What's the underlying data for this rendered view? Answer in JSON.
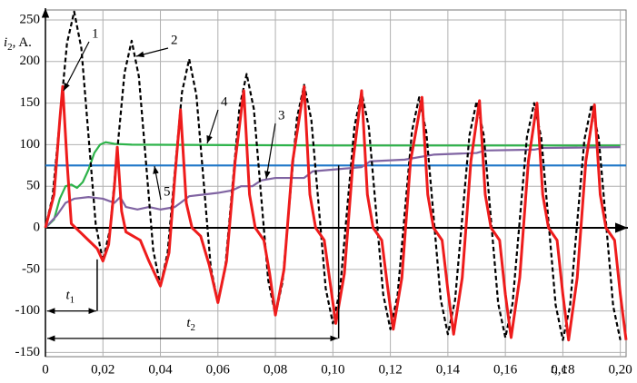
{
  "chart_data": {
    "type": "line",
    "y_label": {
      "text": "i",
      "sub": "2",
      "unit": ", A."
    },
    "x_label": {
      "text": "t",
      "unit": ", c"
    },
    "xlim": [
      0,
      0.202
    ],
    "ylim": [
      -155,
      262
    ],
    "xticks": [
      0,
      {
        "value": 0.02,
        "label": "0,02"
      },
      {
        "value": 0.04,
        "label": "0,04"
      },
      {
        "value": 0.06,
        "label": "0,06"
      },
      {
        "value": 0.08,
        "label": "0,08"
      },
      {
        "value": 0.1,
        "label": "0,10"
      },
      {
        "value": 0.12,
        "label": "0,12"
      },
      {
        "value": 0.14,
        "label": "0,14"
      },
      {
        "value": 0.16,
        "label": "0,16"
      },
      {
        "value": 0.18,
        "label": "0,18"
      },
      {
        "value": 0.2,
        "label": "0,20"
      }
    ],
    "yticks": [
      -150,
      -100,
      -50,
      0,
      50,
      100,
      150,
      200,
      250
    ],
    "grid": true,
    "series": [
      {
        "name": "1",
        "color": "#ee1c1c",
        "dash": false,
        "x": [
          0,
          0.003,
          0.005,
          0.006,
          0.0075,
          0.009,
          0.012,
          0.015,
          0.018,
          0.02,
          0.022,
          0.024,
          0.025,
          0.0265,
          0.028,
          0.033,
          0.036,
          0.04,
          0.043,
          0.045,
          0.047,
          0.049,
          0.051,
          0.054,
          0.057,
          0.06,
          0.063,
          0.066,
          0.069,
          0.071,
          0.073,
          0.076,
          0.078,
          0.08,
          0.083,
          0.086,
          0.09,
          0.092,
          0.094,
          0.097,
          0.099,
          0.101,
          0.104,
          0.107,
          0.11,
          0.112,
          0.114,
          0.117,
          0.119,
          0.121,
          0.124,
          0.127,
          0.131,
          0.133,
          0.135,
          0.138,
          0.14,
          0.142,
          0.145,
          0.148,
          0.151,
          0.153,
          0.155,
          0.158,
          0.16,
          0.162,
          0.165,
          0.168,
          0.171,
          0.173,
          0.175,
          0.178,
          0.18,
          0.182,
          0.185,
          0.188,
          0.191,
          0.193,
          0.195,
          0.198,
          0.2,
          0.202
        ],
        "values": [
          0,
          40,
          130,
          170,
          80,
          5,
          -5,
          -15,
          -25,
          -40,
          -20,
          50,
          97,
          20,
          -5,
          -15,
          -40,
          -70,
          -30,
          60,
          142,
          30,
          0,
          -10,
          -45,
          -90,
          -40,
          80,
          165,
          40,
          0,
          -15,
          -55,
          -105,
          -50,
          80,
          170,
          40,
          0,
          -15,
          -65,
          -115,
          -55,
          80,
          165,
          40,
          0,
          -15,
          -70,
          -122,
          -60,
          80,
          157,
          40,
          0,
          -15,
          -75,
          -128,
          -60,
          80,
          153,
          40,
          0,
          -15,
          -80,
          -132,
          -60,
          80,
          150,
          40,
          0,
          -15,
          -80,
          -135,
          -60,
          80,
          148,
          40,
          0,
          -15,
          -80,
          -135
        ]
      },
      {
        "name": "2",
        "color": "#000000",
        "dash": true,
        "x": [
          0,
          0.0025,
          0.005,
          0.0075,
          0.01,
          0.0125,
          0.015,
          0.0175,
          0.02,
          0.0225,
          0.025,
          0.0275,
          0.03,
          0.0325,
          0.035,
          0.0375,
          0.04,
          0.0425,
          0.045,
          0.0475,
          0.05,
          0.0525,
          0.055,
          0.0575,
          0.06,
          0.0625,
          0.065,
          0.0675,
          0.07,
          0.0725,
          0.075,
          0.0775,
          0.08,
          0.0825,
          0.085,
          0.0875,
          0.09,
          0.0925,
          0.095,
          0.0975,
          0.1,
          0.1025,
          0.105,
          0.1075,
          0.11,
          0.1125,
          0.115,
          0.1175,
          0.12,
          0.1225,
          0.125,
          0.1275,
          0.13,
          0.1325,
          0.135,
          0.1375,
          0.14,
          0.1425,
          0.145,
          0.1475,
          0.15,
          0.1525,
          0.155,
          0.1575,
          0.16,
          0.1625,
          0.165,
          0.1675,
          0.17,
          0.1725,
          0.175,
          0.1775,
          0.18,
          0.1825,
          0.185,
          0.1875,
          0.19,
          0.1925,
          0.195,
          0.1975,
          0.2
        ],
        "values": [
          0,
          38,
          130,
          222,
          260,
          216,
          110,
          4,
          -40,
          -1,
          93,
          186,
          225,
          182,
          78,
          -27,
          -70,
          -30,
          67,
          163,
          203,
          160,
          57,
          -47,
          -90,
          -50,
          48,
          145,
          185,
          143,
          40,
          -63,
          -105,
          -65,
          34,
          132,
          172,
          130,
          29,
          -73,
          -115,
          -74,
          24,
          122,
          163,
          121,
          21,
          -80,
          -122,
          -81,
          18,
          116,
          157,
          115,
          15,
          -86,
          -128,
          -87,
          12,
          111,
          152,
          111,
          10,
          -91,
          -132,
          -91,
          9,
          109,
          150,
          108,
          8,
          -93,
          -135,
          -94,
          7,
          106,
          148,
          107,
          7,
          -94,
          -135
        ]
      },
      {
        "name": "3",
        "color": "#8064a2",
        "dash": false,
        "x": [
          0,
          0.004,
          0.007,
          0.01,
          0.015,
          0.02,
          0.024,
          0.026,
          0.028,
          0.032,
          0.036,
          0.04,
          0.045,
          0.047,
          0.05,
          0.055,
          0.06,
          0.065,
          0.068,
          0.072,
          0.075,
          0.08,
          0.09,
          0.093,
          0.1,
          0.11,
          0.113,
          0.125,
          0.13,
          0.135,
          0.15,
          0.153,
          0.17,
          0.173,
          0.2
        ],
        "values": [
          0,
          15,
          30,
          35,
          37,
          35,
          30,
          37,
          25,
          22,
          25,
          22,
          25,
          30,
          38,
          40,
          42,
          45,
          50,
          50,
          57,
          60,
          60,
          68,
          70,
          73,
          80,
          82,
          85,
          88,
          90,
          93,
          94,
          96,
          97
        ]
      },
      {
        "name": "4",
        "color": "#2db34a",
        "dash": false,
        "x": [
          0,
          0.003,
          0.005,
          0.007,
          0.009,
          0.011,
          0.013,
          0.015,
          0.017,
          0.019,
          0.021,
          0.024,
          0.03,
          0.1,
          0.2
        ],
        "values": [
          0,
          10,
          35,
          50,
          52,
          48,
          55,
          70,
          90,
          100,
          103,
          101,
          100,
          99,
          99
        ]
      },
      {
        "name": "5",
        "color": "#1f77c8",
        "dash": false,
        "x": [
          0,
          0.202
        ],
        "values": [
          75,
          75
        ]
      }
    ],
    "annotations": [
      {
        "text": "t",
        "sub": "1",
        "value": 0.018
      },
      {
        "text": "t",
        "sub": "2",
        "value": 0.102
      }
    ]
  }
}
